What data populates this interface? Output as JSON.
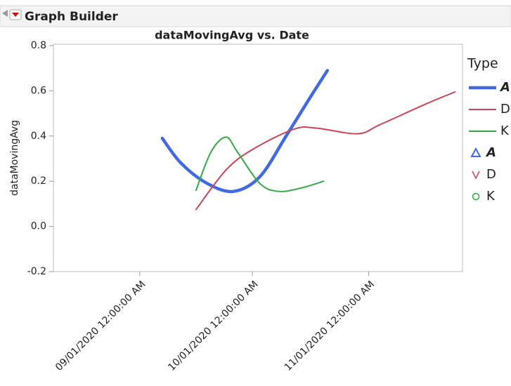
{
  "header": {
    "title": "Graph Builder"
  },
  "chart_data": {
    "type": "line",
    "title": "dataMovingAvg vs. Date",
    "y_label": "dataMovingAvg",
    "legend_title": "Type",
    "xlim": [
      "08/09/2020",
      "11/26/2020"
    ],
    "xticks": [
      "09/01/2020 12:00:00 AM",
      "10/01/2020 12:00:00 AM",
      "11/01/2020 12:00:00 AM"
    ],
    "ylim": [
      -0.2,
      0.8
    ],
    "yticks": [
      0.8,
      0.6,
      0.4,
      0.2,
      {
        "value": 0,
        "label": "0.0"
      },
      -0.2
    ],
    "series": [
      {
        "name": "A",
        "color": "#4169e1",
        "width": 4.5,
        "marker": "triangle",
        "x": [
          "09/07/2020",
          "09/12/2020",
          "09/19/2020",
          "09/26/2020",
          "10/03/2020",
          "10/10/2020",
          "10/16/2020",
          "10/21/2020"
        ],
        "values": [
          0.39,
          0.28,
          0.19,
          0.155,
          0.22,
          0.4,
          0.56,
          0.69
        ]
      },
      {
        "name": "D",
        "color": "#cc4455",
        "width": 2,
        "marker": "v",
        "x": [
          "09/16/2020",
          "09/24/2020",
          "10/01/2020",
          "10/12/2020",
          "10/18/2020",
          "10/29/2020",
          "11/04/2020",
          "11/16/2020",
          "11/24/2020"
        ],
        "values": [
          0.075,
          0.25,
          0.34,
          0.43,
          0.435,
          0.41,
          0.45,
          0.54,
          0.595
        ]
      },
      {
        "name": "K",
        "color": "#33aa44",
        "width": 2,
        "marker": "circle",
        "x": [
          "09/16/2020",
          "09/20/2020",
          "09/24/2020",
          "09/27/2020",
          "10/03/2020",
          "10/08/2020",
          "10/14/2020",
          "10/20/2020"
        ],
        "values": [
          0.16,
          0.33,
          0.395,
          0.33,
          0.19,
          0.155,
          0.17,
          0.2
        ]
      }
    ]
  }
}
